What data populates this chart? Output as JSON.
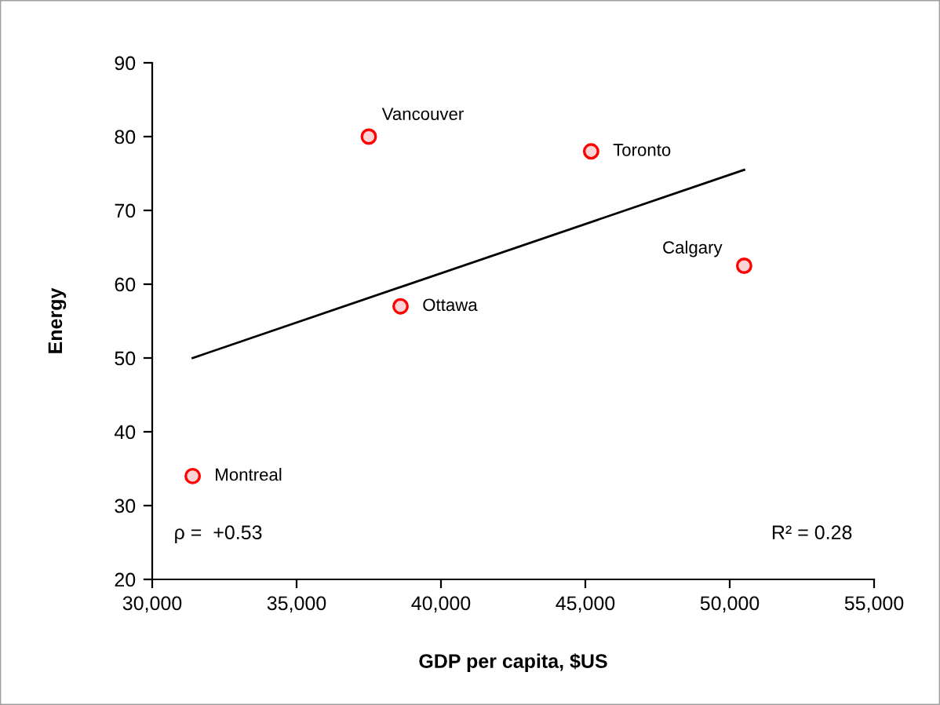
{
  "chart_data": {
    "type": "scatter",
    "xlabel": "GDP per capita, $US",
    "ylabel": "Energy",
    "xlim": [
      30000,
      55000
    ],
    "xticks": [
      {
        "value": 30000,
        "label": "30,000"
      },
      {
        "value": 35000,
        "label": "35,000"
      },
      {
        "value": 40000,
        "label": "40,000"
      },
      {
        "value": 45000,
        "label": "45,000"
      },
      {
        "value": 50000,
        "label": "50,000"
      },
      {
        "value": 55000,
        "label": "55,000"
      }
    ],
    "ylim": [
      20,
      90
    ],
    "yticks": [
      20,
      30,
      40,
      50,
      60,
      70,
      80,
      90
    ],
    "series": [
      {
        "color": "#ff0000",
        "x": [
          37500,
          45200,
          50500,
          38600,
          31400
        ],
        "values": [
          80,
          78,
          62.5,
          57,
          34
        ],
        "marker": "circle"
      },
      {
        "type": "line",
        "color": "#000000",
        "x": [
          31400,
          50500
        ],
        "values": [
          50,
          75.5
        ],
        "marker": "none",
        "line_style": "solid"
      }
    ],
    "annotations": [
      {
        "text": "Vancouver",
        "x": 37500,
        "y": 80
      },
      {
        "text": "Toronto",
        "x": 45200,
        "y": 78
      },
      {
        "text": "Calgary",
        "x": 50500,
        "y": 62.5
      },
      {
        "text": "Ottawa",
        "x": 38600,
        "y": 57
      },
      {
        "text": "Montreal",
        "x": 31400,
        "y": 34
      },
      "ρ =  +0.53",
      "R² = 0.28"
    ],
    "grid": false,
    "legend": false
  }
}
